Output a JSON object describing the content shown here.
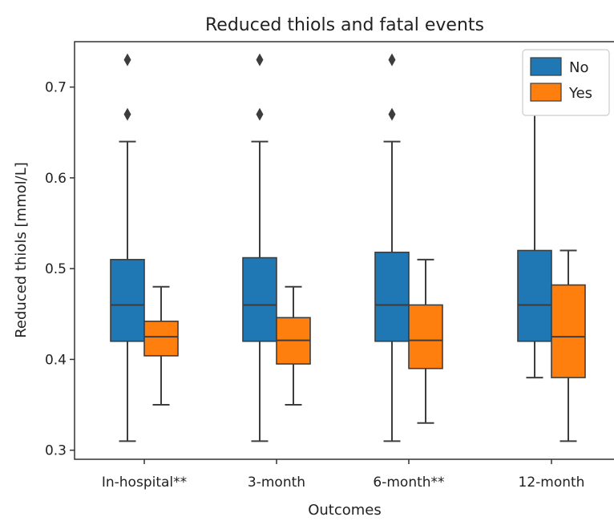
{
  "chart_data": {
    "type": "box",
    "title": "Reduced thiols and fatal events",
    "xlabel": "Outcomes",
    "ylabel": "Reduced thiols [mmol/L]",
    "ylim": [
      0.29,
      0.75
    ],
    "yticks": [
      0.3,
      0.4,
      0.5,
      0.6,
      0.7
    ],
    "ytick_labels": [
      "0.3",
      "0.4",
      "0.5",
      "0.6",
      "0.7"
    ],
    "categories": [
      "In-hospital**",
      "3-month",
      "6-month**",
      "12-month"
    ],
    "legend": {
      "placement": "top-right",
      "entries": [
        {
          "label": "No",
          "color": "#1f77b4"
        },
        {
          "label": "Yes",
          "color": "#ff7f0e"
        }
      ]
    },
    "series": [
      {
        "name": "No",
        "color": "#1f77b4",
        "boxes": [
          {
            "min": 0.31,
            "q1": 0.42,
            "median": 0.46,
            "q3": 0.51,
            "max": 0.64,
            "outliers": [
              0.67,
              0.73
            ]
          },
          {
            "min": 0.31,
            "q1": 0.42,
            "median": 0.46,
            "q3": 0.512,
            "max": 0.64,
            "outliers": [
              0.67,
              0.73
            ]
          },
          {
            "min": 0.31,
            "q1": 0.42,
            "median": 0.46,
            "q3": 0.518,
            "max": 0.64,
            "outliers": [
              0.67,
              0.73
            ]
          },
          {
            "min": 0.38,
            "q1": 0.42,
            "median": 0.46,
            "q3": 0.52,
            "max": 0.67,
            "outliers": []
          }
        ]
      },
      {
        "name": "Yes",
        "color": "#ff7f0e",
        "boxes": [
          {
            "min": 0.35,
            "q1": 0.404,
            "median": 0.425,
            "q3": 0.442,
            "max": 0.48,
            "outliers": []
          },
          {
            "min": 0.35,
            "q1": 0.395,
            "median": 0.421,
            "q3": 0.446,
            "max": 0.48,
            "outliers": []
          },
          {
            "min": 0.33,
            "q1": 0.39,
            "median": 0.421,
            "q3": 0.46,
            "max": 0.51,
            "outliers": []
          },
          {
            "min": 0.31,
            "q1": 0.38,
            "median": 0.425,
            "q3": 0.482,
            "max": 0.52,
            "outliers": []
          }
        ]
      }
    ]
  }
}
